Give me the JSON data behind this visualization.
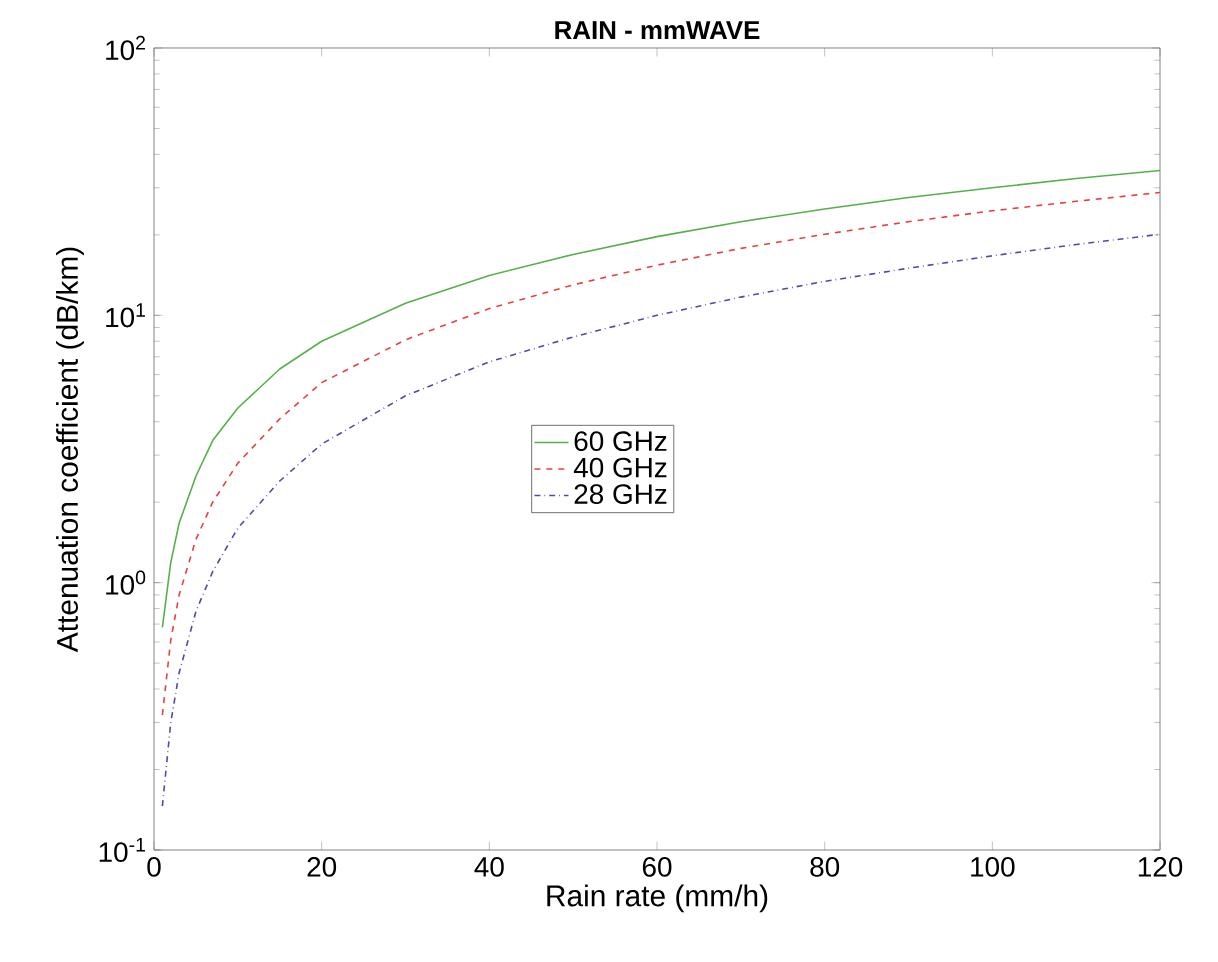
{
  "chart_data": {
    "type": "line",
    "title": "RAIN - mmWAVE",
    "xlabel": "Rain rate (mm/h)",
    "ylabel": "Attenuation coefficient (dB/km)",
    "x": [
      1,
      2,
      3,
      5,
      7,
      10,
      15,
      20,
      30,
      40,
      50,
      60,
      70,
      80,
      90,
      100,
      110,
      120
    ],
    "series": [
      {
        "name": "60 GHz",
        "color": "#56b04a",
        "line_style": "solid",
        "values": [
          0.68,
          1.19,
          1.67,
          2.5,
          3.4,
          4.5,
          6.3,
          8.0,
          11.1,
          14.1,
          16.9,
          19.7,
          22.4,
          25.0,
          27.6,
          30.0,
          32.5,
          34.8
        ]
      },
      {
        "name": "40 GHz",
        "color": "#e8403f",
        "line_style": "dashed",
        "values": [
          0.32,
          0.61,
          0.9,
          1.45,
          2.0,
          2.8,
          4.1,
          5.6,
          8.1,
          10.6,
          13.0,
          15.4,
          17.8,
          20.1,
          22.4,
          24.6,
          26.7,
          28.8
        ]
      },
      {
        "name": "28 GHz",
        "color": "#4b4bb0",
        "line_style": "dashdot",
        "values": [
          0.146,
          0.3,
          0.46,
          0.78,
          1.1,
          1.6,
          2.4,
          3.3,
          5.0,
          6.7,
          8.3,
          10.0,
          11.7,
          13.4,
          15.0,
          16.7,
          18.4,
          20.1
        ]
      }
    ],
    "xlim": [
      0,
      120
    ],
    "xticks": [
      0,
      20,
      40,
      60,
      80,
      100,
      120
    ],
    "ylim": [
      0.1,
      100
    ],
    "yticks": [
      {
        "value": 0.1,
        "label": "10$^{-1}$"
      },
      {
        "value": 1,
        "label": "10$^{0}$"
      },
      {
        "value": 10,
        "label": "10$^{1}$"
      },
      {
        "value": 100,
        "label": "10$^{2}$"
      }
    ],
    "log": "y",
    "grid": false,
    "legend": "center",
    "marker": "none"
  }
}
